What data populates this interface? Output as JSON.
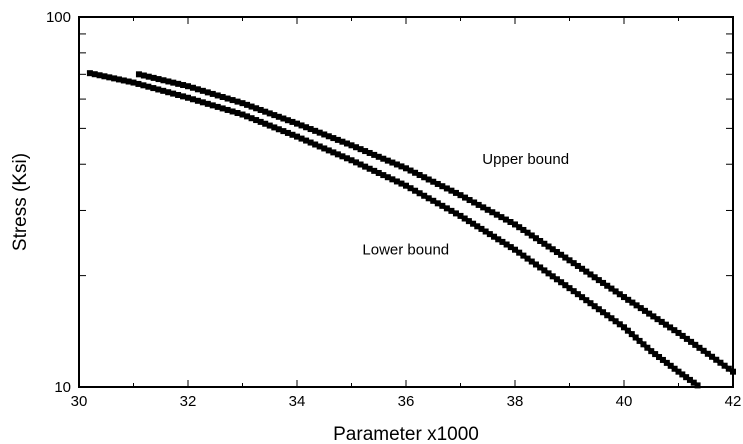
{
  "chart_data": {
    "type": "scatter",
    "xlabel": "Parameter x1000",
    "ylabel": "Stress (Ksi)",
    "xlim": [
      30,
      42
    ],
    "ylim": [
      10,
      100
    ],
    "y_scale": "log",
    "grid": false,
    "x_ticks": [
      30,
      32,
      34,
      36,
      38,
      40,
      42
    ],
    "x_tick_labels": [
      "30",
      "32",
      "34",
      "36",
      "38",
      "40",
      "42"
    ],
    "y_tick_labels": [
      {
        "value": 100,
        "label": "100"
      },
      {
        "value": 10,
        "label": "10"
      }
    ],
    "y_minor_ticks": [
      20,
      30,
      40,
      50,
      60,
      70,
      80,
      90
    ],
    "series": [
      {
        "name": "Upper bound",
        "color": "#000000",
        "x": [
          31.1,
          32.0,
          33.0,
          34.0,
          35.0,
          36.0,
          37.0,
          38.0,
          39.0,
          40.0,
          41.0,
          42.0
        ],
        "y": [
          70.0,
          65.0,
          58.5,
          51.5,
          45.0,
          39.0,
          33.0,
          27.5,
          22.0,
          17.5,
          14.0,
          11.0
        ]
      },
      {
        "name": "Lower bound",
        "color": "#000000",
        "x": [
          30.2,
          31.0,
          32.0,
          33.0,
          34.0,
          35.0,
          36.0,
          37.0,
          38.0,
          39.0,
          40.0,
          40.5,
          41.0,
          41.35
        ],
        "y": [
          70.5,
          66.5,
          60.5,
          54.5,
          47.5,
          41.0,
          35.0,
          29.0,
          23.5,
          18.5,
          14.5,
          12.5,
          11.0,
          10.1
        ]
      }
    ],
    "annotations": [
      {
        "text": "Upper bound",
        "x": 37.4,
        "y": 40.0
      },
      {
        "text": "Lower bound",
        "x": 35.2,
        "y": 22.8
      }
    ]
  }
}
